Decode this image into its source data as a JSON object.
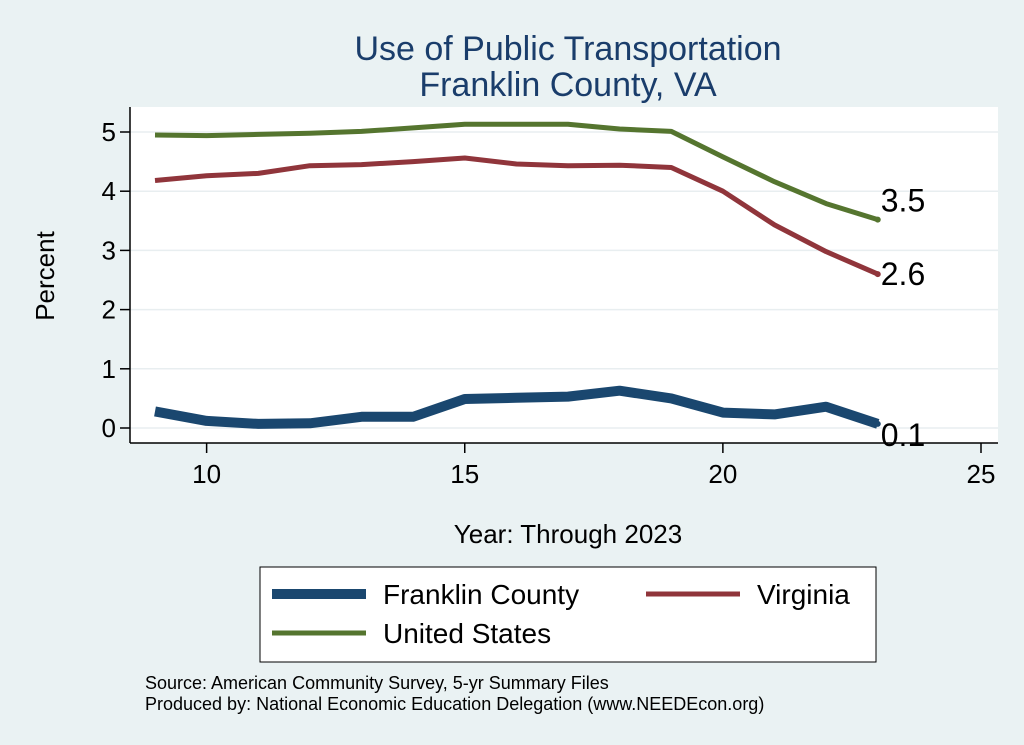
{
  "chart_data": {
    "type": "line",
    "title": "Use of Public Transportation",
    "subtitle": "Franklin County, VA",
    "xlabel": "Year: Through 2023",
    "ylabel": "Percent",
    "xlim": [
      9,
      25
    ],
    "ylim": [
      0,
      5.2
    ],
    "xticks": [
      "10",
      "15",
      "20",
      "25"
    ],
    "yticks": [
      "0",
      "1",
      "2",
      "3",
      "4",
      "5"
    ],
    "grid": true,
    "x": [
      9,
      10,
      11,
      12,
      13,
      14,
      15,
      16,
      17,
      18,
      19,
      20,
      21,
      22,
      23
    ],
    "series": [
      {
        "name": "Franklin County",
        "color": "#1a476f",
        "values": [
          0.28,
          0.12,
          0.07,
          0.08,
          0.19,
          0.19,
          0.49,
          0.51,
          0.53,
          0.63,
          0.5,
          0.26,
          0.23,
          0.36,
          0.07
        ],
        "end_label": "0.1"
      },
      {
        "name": "Virginia",
        "color": "#90353b",
        "values": [
          4.18,
          4.26,
          4.3,
          4.43,
          4.45,
          4.5,
          4.56,
          4.46,
          4.43,
          4.44,
          4.4,
          4.0,
          3.43,
          2.98,
          2.6
        ],
        "end_label": "2.6"
      },
      {
        "name": "United States",
        "color": "#55752f",
        "values": [
          4.95,
          4.94,
          4.96,
          4.98,
          5.01,
          5.07,
          5.13,
          5.13,
          5.13,
          5.05,
          5.01,
          4.58,
          4.16,
          3.79,
          3.52
        ],
        "end_label": "3.5"
      }
    ],
    "legend_position": "bottom",
    "notes": [
      "Source: American Community Survey, 5-yr Summary Files",
      "Produced by: National Economic Education Delegation (www.NEEDEcon.org)"
    ]
  }
}
